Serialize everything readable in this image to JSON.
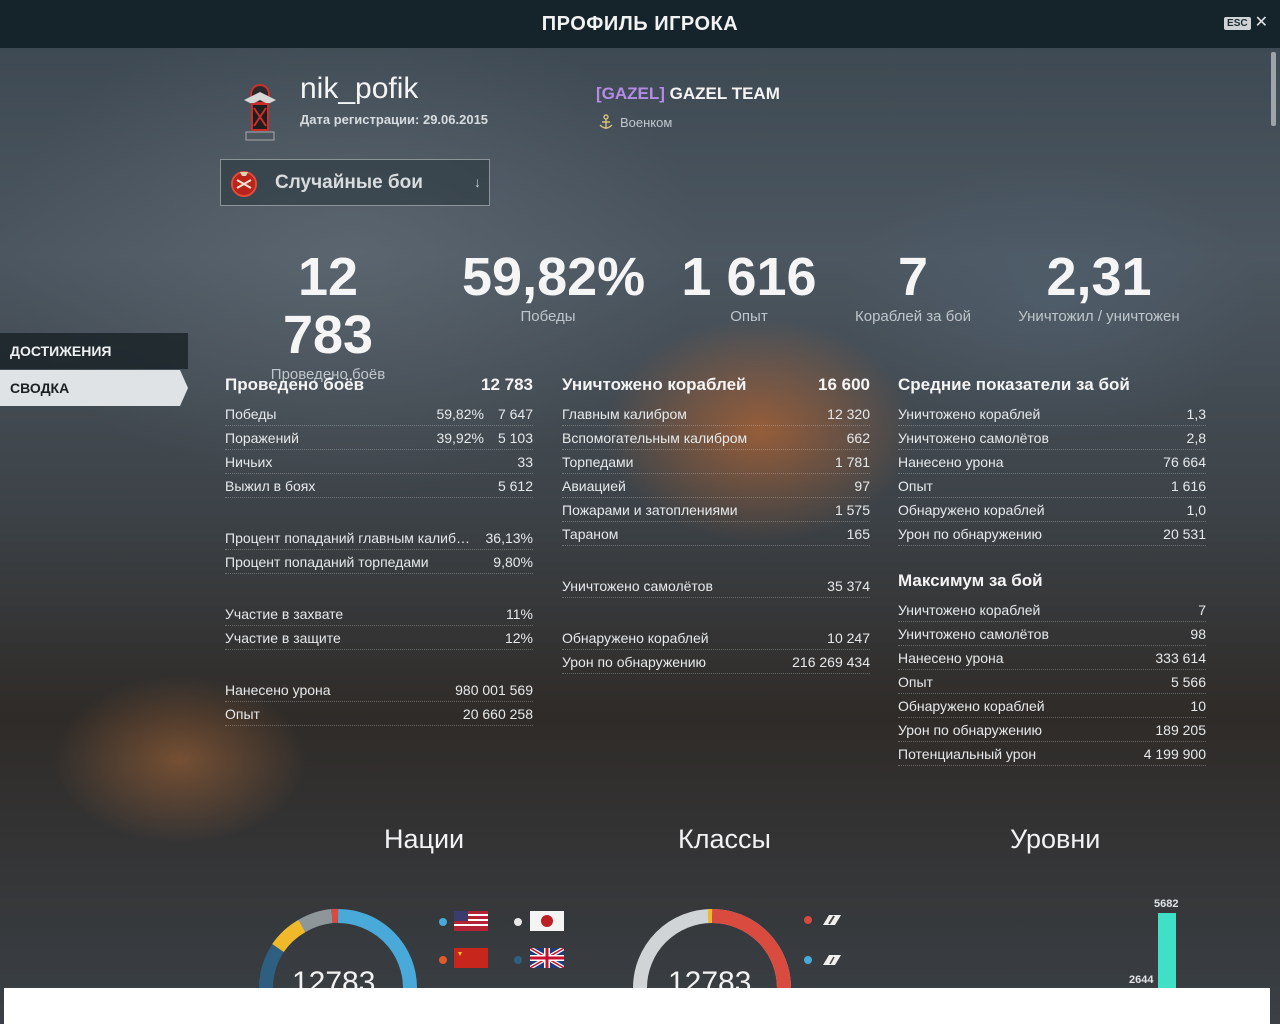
{
  "window": {
    "title": "ПРОФИЛЬ ИГРОКА",
    "esc_key": "ESC",
    "close_glyph": "✕"
  },
  "player": {
    "name": "nik_pofik",
    "registration": "Дата регистрации: 29.06.2015",
    "clan_tag": "[GAZEL]",
    "clan_name": "GAZEL TEAM",
    "role": "Военком"
  },
  "mode_select": {
    "selected": "Случайные бои",
    "arrow": "↓"
  },
  "nav": {
    "achievements": "ДОСТИЖЕНИЯ",
    "summary": "СВОДКА"
  },
  "kpis": [
    {
      "value": "12 783",
      "label": "Проведено боёв"
    },
    {
      "value": "59,82%",
      "label": "Победы"
    },
    {
      "value": "1 616",
      "label": "Опыт"
    },
    {
      "value": "7",
      "label": "Кораблей за бой"
    },
    {
      "value": "2,31",
      "label": "Уничтожил / уничтожен"
    }
  ],
  "battles": {
    "title": "Проведено боёв",
    "total": "12 783",
    "rows": [
      {
        "label": "Победы",
        "pct": "59,82%",
        "value": "7 647"
      },
      {
        "label": "Поражений",
        "pct": "39,92%",
        "value": "5 103"
      },
      {
        "label": "Ничьих",
        "value": "33"
      },
      {
        "label": "Выжил в боях",
        "value": "5 612"
      }
    ],
    "accuracy": [
      {
        "label": "Процент попаданий главным калиб…",
        "value": "36,13%"
      },
      {
        "label": "Процент попаданий торпедами",
        "value": "9,80%"
      }
    ],
    "capture": [
      {
        "label": "Участие в захвате",
        "value": "11%"
      },
      {
        "label": "Участие в защите",
        "value": "12%"
      }
    ],
    "totals": [
      {
        "label": "Нанесено урона",
        "value": "980 001 569"
      },
      {
        "label": "Опыт",
        "value": "20 660 258"
      }
    ]
  },
  "destroyed": {
    "title": "Уничтожено кораблей",
    "total": "16 600",
    "rows": [
      {
        "label": "Главным калибром",
        "value": "12 320"
      },
      {
        "label": "Вспомогательным калибром",
        "value": "662"
      },
      {
        "label": "Торпедами",
        "value": "1 781"
      },
      {
        "label": "Авиацией",
        "value": "97"
      },
      {
        "label": "Пожарами и затоплениями",
        "value": "1 575"
      },
      {
        "label": "Тараном",
        "value": "165"
      }
    ],
    "planes": [
      {
        "label": "Уничтожено самолётов",
        "value": "35 374"
      }
    ],
    "spotting": [
      {
        "label": "Обнаружено кораблей",
        "value": "10 247"
      },
      {
        "label": "Урон по обнаружению",
        "value": "216 269 434"
      }
    ]
  },
  "averages": {
    "title": "Средние показатели за бой",
    "rows": [
      {
        "label": "Уничтожено кораблей",
        "value": "1,3"
      },
      {
        "label": "Уничтожено самолётов",
        "value": "2,8"
      },
      {
        "label": "Нанесено урона",
        "value": "76 664"
      },
      {
        "label": "Опыт",
        "value": "1 616"
      },
      {
        "label": "Обнаружено кораблей",
        "value": "1,0"
      },
      {
        "label": "Урон по обнаружению",
        "value": "20 531"
      }
    ]
  },
  "maximums": {
    "title": "Максимум за бой",
    "rows": [
      {
        "label": "Уничтожено кораблей",
        "value": "7"
      },
      {
        "label": "Уничтожено самолётов",
        "value": "98"
      },
      {
        "label": "Нанесено урона",
        "value": "333 614"
      },
      {
        "label": "Опыт",
        "value": "5 566"
      },
      {
        "label": "Обнаружено кораблей",
        "value": "10"
      },
      {
        "label": "Урон по обнаружению",
        "value": "189 205"
      },
      {
        "label": "Потенциальный урон",
        "value": "4 199 900"
      }
    ]
  },
  "sections": {
    "nations": "Нации",
    "classes": "Классы",
    "tiers": "Уровни"
  },
  "nations_chart": {
    "total": "12783"
  },
  "classes_chart": {
    "total": "12783"
  },
  "tiers_chart": {
    "top_value": "5682",
    "second_value": "2644"
  },
  "colors": {
    "accent_teal": "#3fe0c6",
    "clan_tag": "#b48ce6",
    "donut_blue": "#49a9d8",
    "donut_red": "#d94a3f",
    "donut_yellow": "#f0b92a",
    "donut_grey": "#8f9699"
  }
}
